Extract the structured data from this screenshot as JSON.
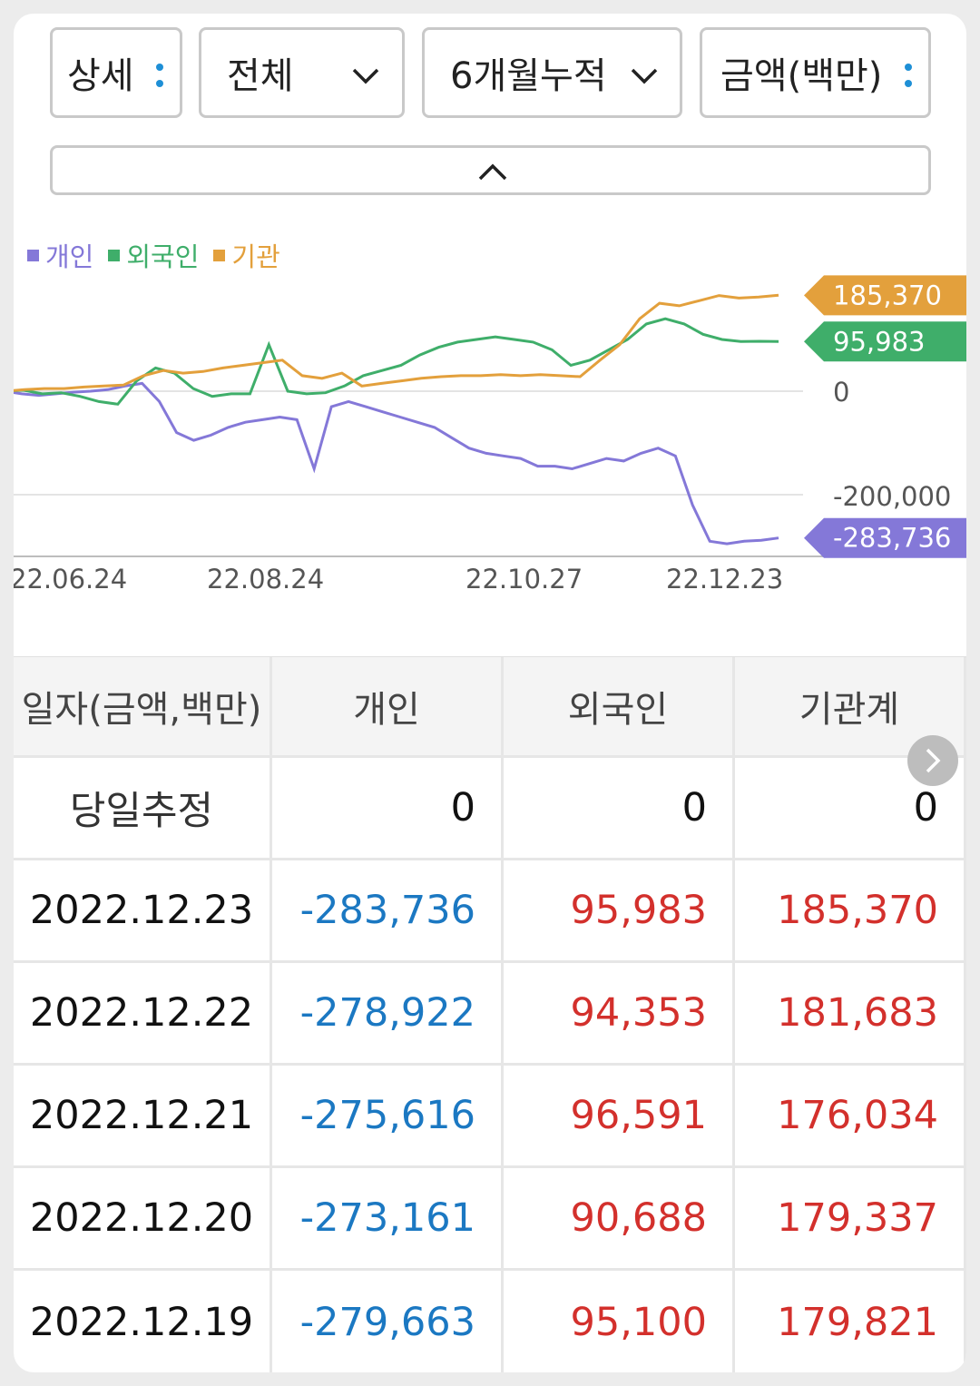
{
  "filters": {
    "view": "상세",
    "scope": "전체",
    "period": "6개월누적",
    "unit": "금액(백만)"
  },
  "legend": [
    {
      "label": "개인",
      "color": "#8478d8"
    },
    {
      "label": "외국인",
      "color": "#3fae6a"
    },
    {
      "label": "기관",
      "color": "#e3a03c"
    }
  ],
  "chart_data": {
    "type": "line",
    "x_ticks": [
      "22.06.24",
      "22.08.24",
      "22.10.27",
      "22.12.23"
    ],
    "y_ticks": [
      "0",
      "-200,000"
    ],
    "series": [
      {
        "name": "개인",
        "color": "#8478d8",
        "last_label": "-283,736",
        "values": [
          0,
          -5000,
          -8000,
          -5000,
          -2000,
          0,
          3000,
          10000,
          15000,
          -20000,
          -80000,
          -95000,
          -85000,
          -70000,
          -60000,
          -55000,
          -50000,
          -55000,
          -150000,
          -30000,
          -20000,
          -30000,
          -40000,
          -50000,
          -60000,
          -70000,
          -90000,
          -110000,
          -120000,
          -125000,
          -130000,
          -145000,
          -145000,
          -150000,
          -140000,
          -130000,
          -135000,
          -120000,
          -110000,
          -125000,
          -220000,
          -290000,
          -295000,
          -290000,
          -288000,
          -283736
        ]
      },
      {
        "name": "외국인",
        "color": "#3fae6a",
        "last_label": "95,983",
        "values": [
          0,
          2000,
          -5000,
          -3000,
          -10000,
          -20000,
          -25000,
          20000,
          45000,
          35000,
          5000,
          -10000,
          -5000,
          -5000,
          90000,
          0,
          -5000,
          -3000,
          10000,
          30000,
          40000,
          50000,
          70000,
          85000,
          95000,
          100000,
          105000,
          100000,
          95000,
          80000,
          50000,
          60000,
          80000,
          100000,
          130000,
          140000,
          130000,
          110000,
          100000,
          96000,
          96500,
          95983
        ]
      },
      {
        "name": "기관",
        "color": "#e3a03c",
        "last_label": "185,370",
        "values": [
          0,
          3000,
          5000,
          5000,
          8000,
          10000,
          12000,
          30000,
          40000,
          35000,
          38000,
          45000,
          50000,
          55000,
          60000,
          30000,
          25000,
          35000,
          10000,
          15000,
          20000,
          25000,
          28000,
          30000,
          30000,
          32000,
          30000,
          32000,
          30000,
          28000,
          60000,
          90000,
          140000,
          170000,
          165000,
          175000,
          185000,
          180000,
          182000,
          185370
        ]
      }
    ]
  },
  "table": {
    "headers": [
      "일자(금액,백만)",
      "개인",
      "외국인",
      "기관계"
    ],
    "estimate_row": {
      "label": "당일추정",
      "individual": "0",
      "foreign": "0",
      "institution": "0"
    },
    "rows": [
      {
        "date": "2022.12.23",
        "individual": "-283,736",
        "foreign": "95,983",
        "institution": "185,370"
      },
      {
        "date": "2022.12.22",
        "individual": "-278,922",
        "foreign": "94,353",
        "institution": "181,683"
      },
      {
        "date": "2022.12.21",
        "individual": "-275,616",
        "foreign": "96,591",
        "institution": "176,034"
      },
      {
        "date": "2022.12.20",
        "individual": "-273,161",
        "foreign": "90,688",
        "institution": "179,337"
      },
      {
        "date": "2022.12.19",
        "individual": "-279,663",
        "foreign": "95,100",
        "institution": "179,821"
      }
    ]
  }
}
